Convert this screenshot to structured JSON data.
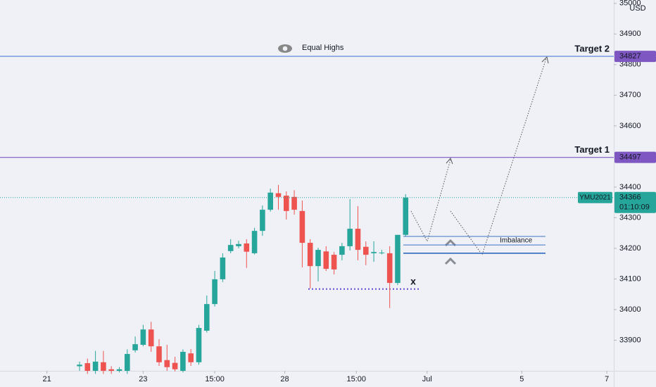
{
  "chart_data": {
    "type": "candlestick",
    "currency": "USD",
    "x": [
      0,
      1,
      2,
      3,
      4,
      5,
      6,
      7,
      8,
      9,
      10,
      11,
      12,
      13,
      14,
      15,
      16,
      17,
      18,
      19,
      20,
      21,
      22,
      23,
      24,
      25,
      26,
      27,
      28,
      29,
      30,
      31,
      32,
      33,
      34,
      35,
      36,
      37,
      38,
      39,
      40,
      41
    ],
    "open": [
      33815,
      33825,
      33800,
      33828,
      33805,
      33800,
      33800,
      33867,
      33885,
      33935,
      33880,
      33835,
      33826,
      33800,
      33857,
      33828,
      33931,
      34018,
      34099,
      34191,
      34207,
      34216,
      34184,
      34257,
      34326,
      34380,
      34372,
      34368,
      34322,
      34218,
      34142,
      34190,
      34179,
      34179,
      34207,
      34264,
      34205,
      34184,
      34186,
      34184,
      34087,
      34244
    ],
    "high": [
      33830,
      33840,
      33865,
      33865,
      33815,
      33812,
      33870,
      33912,
      33950,
      33960,
      33903,
      33885,
      33846,
      33870,
      33871,
      33950,
      34046,
      34126,
      34184,
      34230,
      34225,
      34230,
      34267,
      34340,
      34395,
      34407,
      34386,
      34390,
      34356,
      34230,
      34202,
      34207,
      34188,
      34218,
      34361,
      34338,
      34223,
      34223,
      34195,
      34207,
      34244,
      34377
    ],
    "low": [
      33800,
      33790,
      33790,
      33790,
      33790,
      33795,
      33790,
      33860,
      33880,
      33862,
      33816,
      33800,
      33798,
      33795,
      33816,
      33820,
      33925,
      34010,
      34090,
      34184,
      34200,
      34136,
      34180,
      34241,
      34320,
      34326,
      34294,
      34310,
      34138,
      34069,
      34092,
      34126,
      34115,
      34161,
      34193,
      34161,
      34145,
      34156,
      34180,
      34005,
      34080,
      34240
    ],
    "close": [
      33820,
      33800,
      33830,
      33800,
      33800,
      33805,
      33855,
      33887,
      33935,
      33880,
      33828,
      33812,
      33805,
      33862,
      33828,
      33940,
      34018,
      34099,
      34170,
      34211,
      34214,
      34189,
      34257,
      34326,
      34382,
      34368,
      34322,
      34326,
      34218,
      34142,
      34195,
      34133,
      34131,
      34207,
      34264,
      34195,
      34179,
      34188,
      34186,
      34087,
      34244,
      34366
    ],
    "up_color": "#26a69a",
    "down_color": "#ef5350",
    "xlim": [
      -10,
      67.17
    ],
    "xticks": [
      {
        "value": -4.1,
        "label": "21"
      },
      {
        "value": 8.0,
        "label": "23"
      },
      {
        "value": 17.0,
        "label": "15:00"
      },
      {
        "value": 25.8,
        "label": "28"
      },
      {
        "value": 34.8,
        "label": "15:00"
      },
      {
        "value": 43.7,
        "label": "Jul"
      },
      {
        "value": 55.6,
        "label": "5"
      },
      {
        "value": 66.3,
        "label": "7"
      }
    ],
    "ylim": [
      33800,
      35011
    ],
    "yticks": [
      33900,
      34000,
      34100,
      34200,
      34300,
      34400,
      34600,
      34700,
      34800,
      34900,
      35000
    ],
    "levels": [
      {
        "name": "Target 2",
        "value": 34827,
        "color": "#7e57c2",
        "line_color": "#4f7fd8"
      },
      {
        "name": "Target 1",
        "value": 34497,
        "color": "#7e57c2",
        "line_color": "#7e57c2"
      }
    ],
    "last_price": {
      "symbol": "YMU2021",
      "value": 34366,
      "countdown": "01:10:09",
      "color": "#26a69a"
    },
    "annotations": {
      "equal_highs": "Equal Highs",
      "imbalance": {
        "label": "Imbalance",
        "top": 34239,
        "mid": 34211,
        "bottom": 34184,
        "color": "#3d74c4"
      },
      "low_mark": {
        "label": "x",
        "value": 34067,
        "color": "#5c4fd6"
      }
    }
  }
}
